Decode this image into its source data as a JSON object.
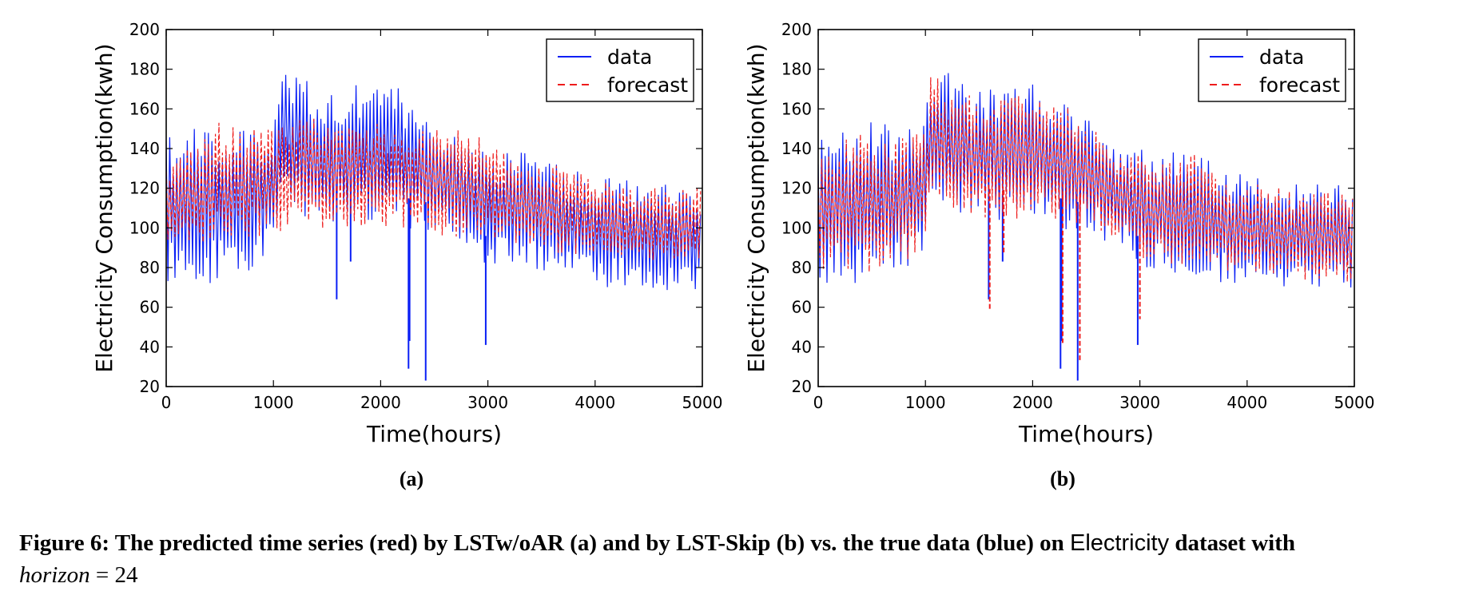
{
  "chart_data": [
    {
      "type": "line",
      "xlabel": "Time(hours)",
      "ylabel": "Electricity Consumption(kwh)",
      "xlim": [
        0,
        5000
      ],
      "ylim": [
        20,
        200
      ],
      "xticks": [
        "0",
        "1000",
        "2000",
        "3000",
        "4000",
        "5000"
      ],
      "yticks": [
        "20",
        "40",
        "60",
        "80",
        "100",
        "120",
        "140",
        "160",
        "180",
        "200"
      ],
      "legend_position": "top-right",
      "grid": false,
      "series": [
        {
          "name": "data",
          "color": "#0a1ff5",
          "style": "solid",
          "x": [
            0,
            250,
            500,
            750,
            1000,
            1050,
            1250,
            1500,
            1750,
            2000,
            2250,
            2500,
            2750,
            3000,
            3250,
            3500,
            3750,
            4000,
            4250,
            4500,
            4750,
            5000
          ],
          "low": [
            72,
            71,
            72,
            76,
            88,
            108,
            105,
            103,
            102,
            102,
            100,
            97,
            92,
            80,
            78,
            76,
            72,
            70,
            70,
            69,
            68,
            67
          ],
          "high": [
            146,
            150,
            155,
            150,
            155,
            183,
            178,
            170,
            172,
            175,
            168,
            160,
            142,
            140,
            137,
            143,
            130,
            126,
            125,
            123,
            122,
            121
          ],
          "dips": [
            [
              1590,
              64
            ],
            [
              1720,
              83
            ],
            [
              2260,
              29
            ],
            [
              2270,
              43
            ],
            [
              2420,
              23
            ],
            [
              2980,
              41
            ]
          ]
        },
        {
          "name": "forecast",
          "color": "#ee1c1c",
          "style": "dashed",
          "x": [
            0,
            250,
            500,
            750,
            1000,
            1250,
            1500,
            1750,
            2000,
            2250,
            2500,
            2750,
            3000,
            3250,
            3500,
            3750,
            4000,
            4250,
            4500,
            4750,
            5000
          ],
          "low": [
            90,
            91,
            92,
            94,
            97,
            99,
            100,
            100,
            100,
            100,
            96,
            95,
            92,
            90,
            88,
            86,
            85,
            84,
            84,
            83,
            83
          ],
          "high": [
            135,
            141,
            155,
            150,
            150,
            157,
            154,
            152,
            153,
            150,
            150,
            150,
            145,
            133,
            132,
            133,
            125,
            122,
            121,
            120,
            120
          ]
        }
      ]
    },
    {
      "type": "line",
      "xlabel": "Time(hours)",
      "ylabel": "Electricity Consumption(kwh)",
      "xlim": [
        0,
        5000
      ],
      "ylim": [
        20,
        200
      ],
      "xticks": [
        "0",
        "1000",
        "2000",
        "3000",
        "4000",
        "5000"
      ],
      "yticks": [
        "20",
        "40",
        "60",
        "80",
        "100",
        "120",
        "140",
        "160",
        "180",
        "200"
      ],
      "legend_position": "top-right",
      "grid": false,
      "series": [
        {
          "name": "data",
          "color": "#0a1ff5",
          "style": "solid",
          "x": [
            0,
            250,
            500,
            750,
            1000,
            1050,
            1250,
            1500,
            1750,
            2000,
            2250,
            2500,
            2750,
            3000,
            3250,
            3500,
            3750,
            4000,
            4250,
            4500,
            4750,
            5000
          ],
          "low": [
            72,
            71,
            72,
            76,
            88,
            108,
            105,
            103,
            102,
            102,
            100,
            97,
            92,
            80,
            78,
            76,
            72,
            70,
            70,
            69,
            68,
            67
          ],
          "high": [
            146,
            150,
            155,
            150,
            155,
            183,
            178,
            170,
            172,
            175,
            168,
            160,
            142,
            140,
            137,
            143,
            130,
            126,
            125,
            123,
            122,
            121
          ],
          "dips": [
            [
              1590,
              64
            ],
            [
              1720,
              83
            ],
            [
              2260,
              29
            ],
            [
              2270,
              43
            ],
            [
              2420,
              23
            ],
            [
              2980,
              41
            ]
          ]
        },
        {
          "name": "forecast",
          "color": "#ee1c1c",
          "style": "dashed",
          "x": [
            0,
            250,
            500,
            750,
            1000,
            1050,
            1250,
            1500,
            1750,
            2000,
            2250,
            2500,
            2750,
            3000,
            3250,
            3500,
            3750,
            4000,
            4250,
            4500,
            4750,
            5000
          ],
          "low": [
            78,
            76,
            78,
            80,
            90,
            110,
            108,
            105,
            104,
            104,
            102,
            100,
            94,
            84,
            82,
            80,
            77,
            75,
            75,
            74,
            73,
            72
          ],
          "high": [
            140,
            145,
            150,
            145,
            150,
            178,
            170,
            165,
            165,
            168,
            165,
            155,
            140,
            138,
            133,
            138,
            128,
            123,
            122,
            120,
            119,
            118
          ],
          "dips": [
            [
              1600,
              58
            ],
            [
              1730,
              87
            ],
            [
              2280,
              42
            ],
            [
              2440,
              33
            ],
            [
              3000,
              54
            ]
          ]
        }
      ]
    }
  ],
  "panel_labels": [
    "(a)",
    "(b)"
  ],
  "caption": {
    "bold_part1": "Figure 6: The predicted time series (red) by LSTw/oAR (a) and by LST-Skip (b) vs. the true data (blue) on ",
    "dataset": "Electricity",
    "bold_part2": " dataset with",
    "math_var": "horizon",
    "math_rest": " = 24"
  }
}
